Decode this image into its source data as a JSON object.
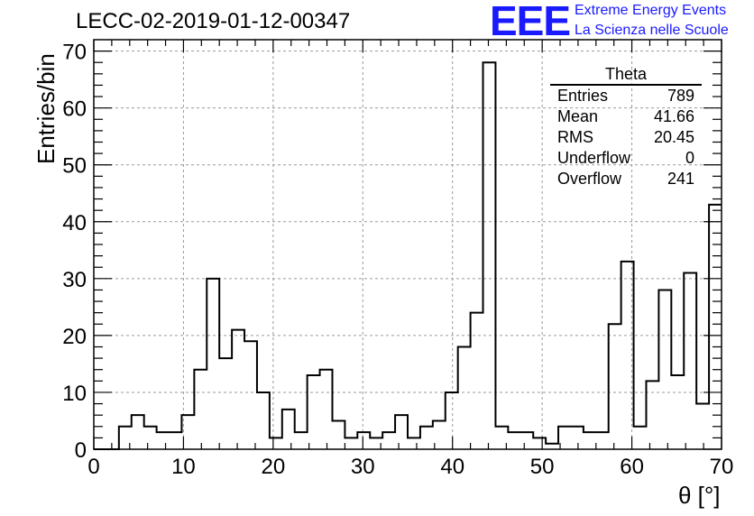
{
  "chart_data": {
    "type": "bar",
    "histogram": true,
    "title": "LECC-02-2019-01-12-00347",
    "xlabel": "θ [°]",
    "ylabel": "Entries/bin",
    "xlim": [
      0,
      70
    ],
    "ylim": [
      0,
      72
    ],
    "grid": true,
    "bin_width": 1.4,
    "x_ticks": [
      0,
      10,
      20,
      30,
      40,
      50,
      60,
      70
    ],
    "y_ticks": [
      0,
      10,
      20,
      30,
      40,
      50,
      60,
      70
    ],
    "x_tick_labels": [
      "0",
      "10",
      "20",
      "30",
      "40",
      "50",
      "60",
      "70"
    ],
    "y_tick_labels": [
      "0",
      "10",
      "20",
      "30",
      "40",
      "50",
      "60",
      "70"
    ],
    "values": [
      0,
      0,
      4,
      6,
      4,
      3,
      3,
      6,
      14,
      30,
      16,
      21,
      19,
      10,
      2,
      7,
      3,
      13,
      14,
      5,
      2,
      3,
      2,
      3,
      6,
      2,
      4,
      5,
      10,
      18,
      24,
      68,
      4,
      3,
      3,
      2,
      1,
      4,
      4,
      3,
      3,
      22,
      33,
      4,
      12,
      28,
      13,
      31,
      8,
      43
    ],
    "line_color": "#000000"
  },
  "stats_box": {
    "title": "Theta",
    "rows": [
      {
        "label": "Entries",
        "value": "789"
      },
      {
        "label": "Mean",
        "value": "41.66"
      },
      {
        "label": "RMS",
        "value": "20.45"
      },
      {
        "label": "Underflow",
        "value": "0"
      },
      {
        "label": "Overflow",
        "value": "241"
      }
    ]
  },
  "logo": {
    "mark": "EEE",
    "line1": "Extreme Energy Events",
    "line2": "La Scienza nelle Scuole",
    "color": "#1a1aff"
  }
}
